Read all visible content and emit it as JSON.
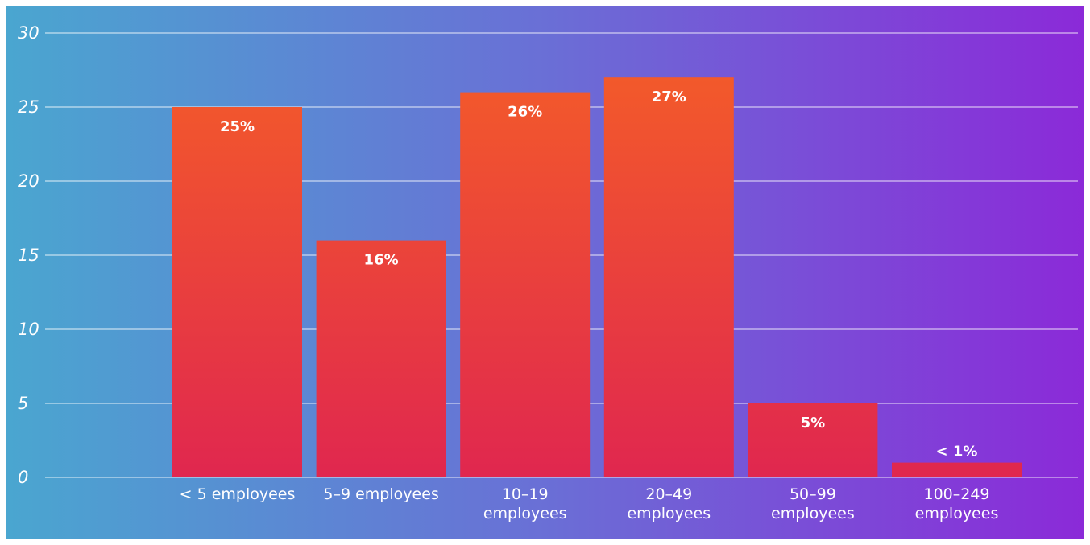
{
  "chart_data": {
    "type": "bar",
    "categories": [
      [
        "< 5 employees"
      ],
      [
        "5–9 employees"
      ],
      [
        "10–19",
        "employees"
      ],
      [
        "20–49",
        "employees"
      ],
      [
        "50–99",
        "employees"
      ],
      [
        "100–249",
        "employees"
      ]
    ],
    "values": [
      25,
      16,
      26,
      27,
      5,
      1
    ],
    "data_labels": [
      "25%",
      "16%",
      "26%",
      "27%",
      "5%",
      "< 1%"
    ],
    "yticks": [
      "0",
      "5",
      "10",
      "15",
      "20",
      "25",
      "30"
    ],
    "ylim": [
      0,
      30
    ],
    "grid": true,
    "legend": "none"
  },
  "colors": {
    "background_left": "#4aa6d0",
    "background_mid": "#6a6fd6",
    "background_right": "#8b2ad8",
    "bar_top": "#f35a2a",
    "bar_bottom": "#e0274f",
    "gridline": "#ffffff",
    "text": "#ffffff"
  }
}
